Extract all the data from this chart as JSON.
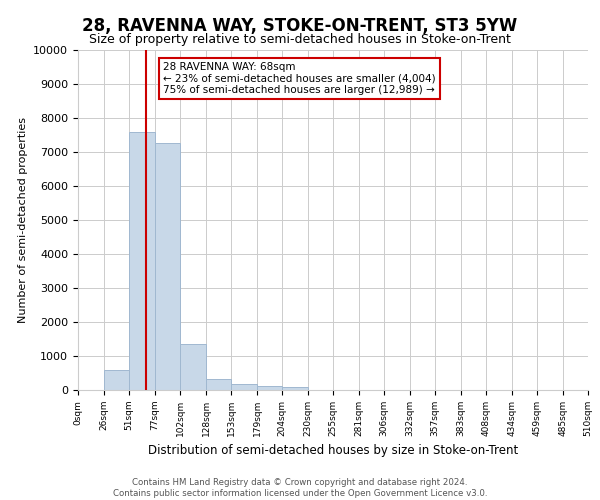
{
  "title": "28, RAVENNA WAY, STOKE-ON-TRENT, ST3 5YW",
  "subtitle": "Size of property relative to semi-detached houses in Stoke-on-Trent",
  "xlabel": "Distribution of semi-detached houses by size in Stoke-on-Trent",
  "ylabel": "Number of semi-detached properties",
  "footnote": "Contains HM Land Registry data © Crown copyright and database right 2024.\nContains public sector information licensed under the Open Government Licence v3.0.",
  "bin_edges": [
    0,
    26,
    51,
    77,
    102,
    128,
    153,
    179,
    204,
    230,
    255,
    281,
    306,
    332,
    357,
    383,
    408,
    434,
    459,
    485,
    510
  ],
  "bar_heights": [
    0,
    580,
    7600,
    7250,
    1350,
    320,
    175,
    130,
    100,
    0,
    0,
    0,
    0,
    0,
    0,
    0,
    0,
    0,
    0,
    0
  ],
  "bar_color": "#c8d8e8",
  "bar_edge_color": "#a0b8d0",
  "grid_color": "#cccccc",
  "property_size": 68,
  "property_label": "28 RAVENNA WAY: 68sqm",
  "pct_smaller": 23,
  "count_smaller": 4004,
  "pct_larger": 75,
  "count_larger": 12989,
  "vline_color": "#cc0000",
  "annotation_box_color": "#cc0000",
  "ylim": [
    0,
    10000
  ],
  "xlim": [
    0,
    510
  ],
  "title_fontsize": 12,
  "subtitle_fontsize": 9,
  "tick_labels": [
    "0sqm",
    "26sqm",
    "51sqm",
    "77sqm",
    "102sqm",
    "128sqm",
    "153sqm",
    "179sqm",
    "204sqm",
    "230sqm",
    "255sqm",
    "281sqm",
    "306sqm",
    "332sqm",
    "357sqm",
    "383sqm",
    "408sqm",
    "434sqm",
    "459sqm",
    "485sqm",
    "510sqm"
  ],
  "tick_positions": [
    0,
    26,
    51,
    77,
    102,
    128,
    153,
    179,
    204,
    230,
    255,
    281,
    306,
    332,
    357,
    383,
    408,
    434,
    459,
    485,
    510
  ]
}
